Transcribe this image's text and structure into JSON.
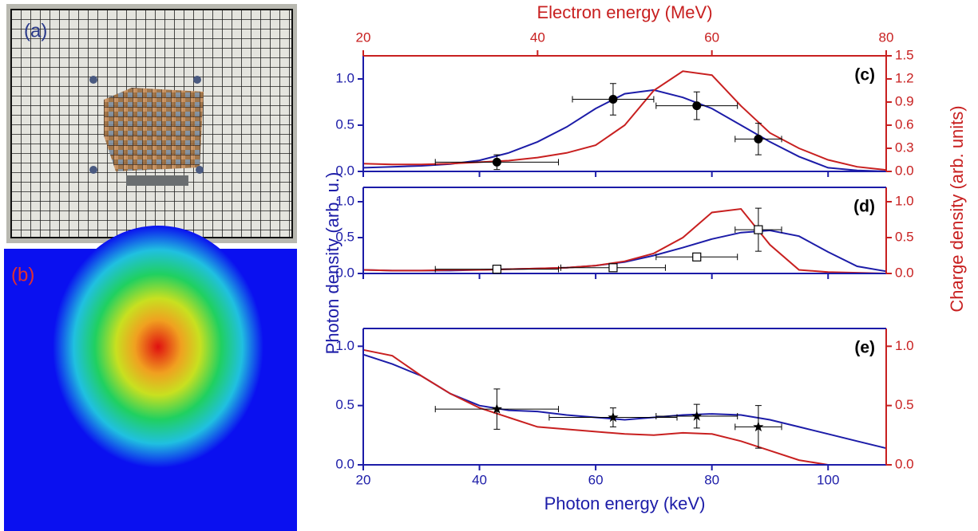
{
  "images": {
    "a": {
      "label": "(a)"
    },
    "b": {
      "label": "(b)"
    }
  },
  "chart_data": [
    {
      "type": "line",
      "panel_label": "(c)",
      "x2label": "Electron energy (MeV)",
      "x2lim": [
        20,
        80
      ],
      "x2ticks": [
        20,
        40,
        60,
        80
      ],
      "xlim": [
        20,
        110
      ],
      "x": [
        20,
        25,
        30,
        35,
        40,
        45,
        50,
        55,
        60,
        65,
        70,
        75,
        80,
        85,
        90,
        95,
        100,
        105,
        110
      ],
      "ylim": [
        0,
        1.25
      ],
      "yticks": [
        {
          "value": 0,
          "label": "0.0"
        },
        0.5,
        {
          "value": 1,
          "label": "1.0"
        }
      ],
      "y2lim": [
        0,
        1.5
      ],
      "y2ticks": [
        {
          "value": 0,
          "label": "0.0"
        },
        0.3,
        0.6,
        0.9,
        1.2,
        1.5
      ],
      "series": [
        {
          "color": "#1c1ca8",
          "values": [
            0.04,
            0.05,
            0.06,
            0.08,
            0.12,
            0.2,
            0.32,
            0.48,
            0.68,
            0.84,
            0.88,
            0.8,
            0.68,
            0.5,
            0.32,
            0.16,
            0.04,
            0.01,
            0
          ]
        },
        {
          "color": "#c82020",
          "axis": "y2",
          "values": [
            0.1,
            0.09,
            0.09,
            0.1,
            0.12,
            0.14,
            0.18,
            0.24,
            0.34,
            0.6,
            1.05,
            1.3,
            1.25,
            0.85,
            0.5,
            0.3,
            0.15,
            0.06,
            0.02
          ]
        }
      ],
      "points": {
        "marker": "circle",
        "color": "#000000",
        "x": [
          43,
          63,
          77.4,
          88
        ],
        "y": [
          0.1,
          0.78,
          0.71,
          0.35
        ],
        "xerr": [
          10.6,
          7,
          7,
          4
        ],
        "yerr": [
          0.08,
          0.17,
          0.15,
          0.17
        ]
      }
    },
    {
      "type": "line",
      "panel_label": "(d)",
      "ylabel": "Photon density (arb. u.)",
      "y2label": "Charge density (arb. units)",
      "xlim": [
        20,
        110
      ],
      "x": [
        20,
        25,
        30,
        35,
        40,
        45,
        50,
        55,
        60,
        65,
        70,
        75,
        80,
        85,
        90,
        95,
        100,
        105,
        110
      ],
      "ylim": [
        0,
        1.2
      ],
      "yticks": [
        {
          "value": 0,
          "label": "0.0"
        },
        0.5,
        {
          "value": 1,
          "label": "1.0"
        }
      ],
      "y2lim": [
        0,
        1.2
      ],
      "y2ticks": [
        {
          "value": 0,
          "label": "0.0"
        },
        0.5,
        {
          "value": 1,
          "label": "1.0"
        }
      ],
      "series": [
        {
          "color": "#1c1ca8",
          "values": [
            0.05,
            0.04,
            0.04,
            0.04,
            0.05,
            0.06,
            0.07,
            0.08,
            0.11,
            0.16,
            0.25,
            0.36,
            0.48,
            0.57,
            0.6,
            0.52,
            0.3,
            0.1,
            0.03
          ]
        },
        {
          "color": "#c82020",
          "axis": "y2",
          "values": [
            0.05,
            0.04,
            0.04,
            0.05,
            0.05,
            0.06,
            0.07,
            0.08,
            0.11,
            0.17,
            0.28,
            0.5,
            0.85,
            0.9,
            0.4,
            0.05,
            0.02,
            0.01,
            0
          ]
        }
      ],
      "points": {
        "marker": "open-square",
        "color": "#000000",
        "x": [
          43,
          63,
          77.4,
          88
        ],
        "y": [
          0.06,
          0.08,
          0.23,
          0.61
        ],
        "xerr": [
          10.6,
          9,
          7,
          4
        ],
        "yerr": [
          0.02,
          0.05,
          0.05,
          0.3
        ]
      }
    },
    {
      "type": "line",
      "panel_label": "(e)",
      "xlabel": "Photon energy (keV)",
      "xlim": [
        20,
        110
      ],
      "xticks": [
        20,
        40,
        60,
        80,
        100
      ],
      "x": [
        20,
        25,
        30,
        35,
        40,
        45,
        50,
        55,
        60,
        65,
        70,
        75,
        80,
        85,
        90,
        95,
        100,
        105,
        110
      ],
      "ylim": [
        0,
        1.15
      ],
      "yticks": [
        {
          "value": 0,
          "label": "0.0"
        },
        0.5,
        {
          "value": 1,
          "label": "1.0"
        }
      ],
      "y2lim": [
        0,
        1.15
      ],
      "y2ticks": [
        {
          "value": 0,
          "label": "0.0"
        },
        0.5,
        {
          "value": 1,
          "label": "1.0"
        }
      ],
      "series": [
        {
          "color": "#1c1ca8",
          "values": [
            0.93,
            0.85,
            0.75,
            0.6,
            0.5,
            0.46,
            0.45,
            0.42,
            0.4,
            0.38,
            0.4,
            0.42,
            0.43,
            0.42,
            0.38,
            0.32,
            0.26,
            0.2,
            0.14
          ]
        },
        {
          "color": "#c82020",
          "axis": "y2",
          "values": [
            0.97,
            0.92,
            0.75,
            0.6,
            0.48,
            0.4,
            0.32,
            0.3,
            0.28,
            0.26,
            0.25,
            0.27,
            0.26,
            0.2,
            0.12,
            0.04,
            0,
            0,
            0
          ]
        }
      ],
      "points": {
        "marker": "star",
        "color": "#000000",
        "x": [
          43,
          63,
          77.4,
          88
        ],
        "y": [
          0.47,
          0.4,
          0.41,
          0.32
        ],
        "xerr": [
          10.6,
          11,
          7,
          4
        ],
        "yerr": [
          0.17,
          0.08,
          0.1,
          0.18
        ]
      }
    }
  ]
}
